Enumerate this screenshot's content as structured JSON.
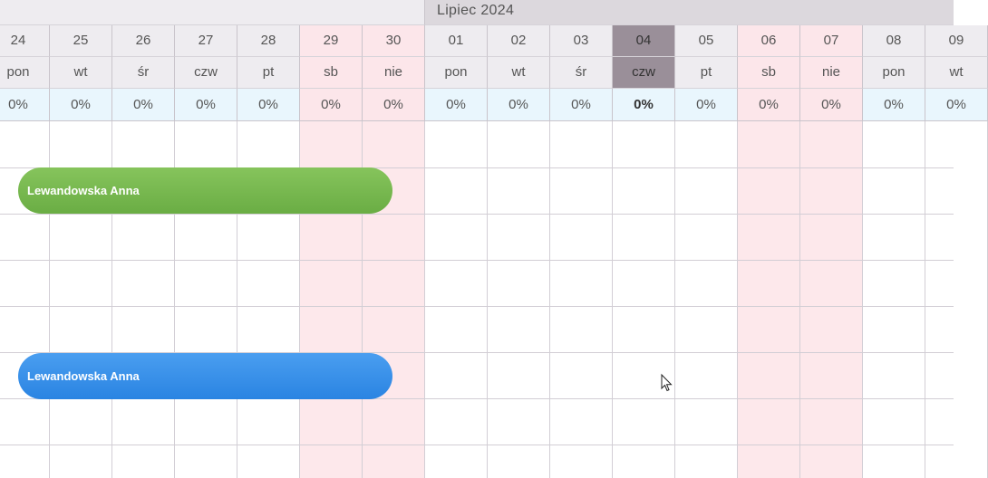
{
  "month": {
    "label": "Lipiec 2024"
  },
  "days": [
    {
      "num": "24",
      "dow": "pon",
      "pct": "0%"
    },
    {
      "num": "25",
      "dow": "wt",
      "pct": "0%"
    },
    {
      "num": "26",
      "dow": "śr",
      "pct": "0%"
    },
    {
      "num": "27",
      "dow": "czw",
      "pct": "0%"
    },
    {
      "num": "28",
      "dow": "pt",
      "pct": "0%"
    },
    {
      "num": "29",
      "dow": "sb",
      "pct": "0%"
    },
    {
      "num": "30",
      "dow": "nie",
      "pct": "0%"
    },
    {
      "num": "01",
      "dow": "pon",
      "pct": "0%"
    },
    {
      "num": "02",
      "dow": "wt",
      "pct": "0%"
    },
    {
      "num": "03",
      "dow": "śr",
      "pct": "0%"
    },
    {
      "num": "04",
      "dow": "czw",
      "pct": "0%"
    },
    {
      "num": "05",
      "dow": "pt",
      "pct": "0%"
    },
    {
      "num": "06",
      "dow": "sb",
      "pct": "0%"
    },
    {
      "num": "07",
      "dow": "nie",
      "pct": "0%"
    },
    {
      "num": "08",
      "dow": "pon",
      "pct": "0%"
    },
    {
      "num": "09",
      "dow": "wt",
      "pct": "0%"
    }
  ],
  "bookings": [
    {
      "name": "Lewandowska Anna",
      "color": "#6aad44"
    },
    {
      "name": "Lewandowska Anna",
      "color": "#2a84e2"
    }
  ],
  "colors": {
    "weekend": "#fde8eb",
    "today": "#9a8f99",
    "percent_row": "#e9f6fd"
  }
}
